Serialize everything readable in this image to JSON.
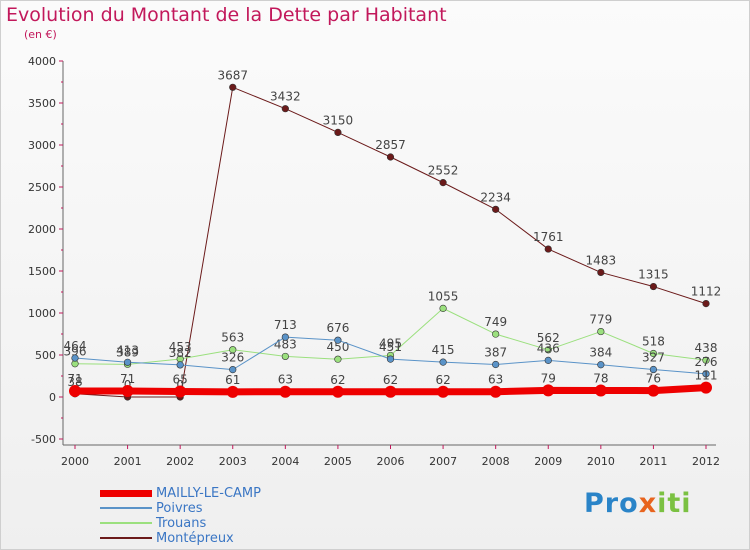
{
  "title": "Evolution du Montant de la Dette par Habitant",
  "subtitle": "(en €)",
  "brand": {
    "text": "Proxiti",
    "letters": [
      "P",
      "r",
      "o",
      "x",
      "i",
      "t",
      "i"
    ],
    "colors": [
      "#2a84c8",
      "#2a84c8",
      "#2a84c8",
      "#e8641e",
      "#7bc142",
      "#7bc142",
      "#7bc142"
    ]
  },
  "chart_data": {
    "type": "line",
    "x": [
      "2000",
      "2001",
      "2002",
      "2003",
      "2004",
      "2005",
      "2006",
      "2007",
      "2008",
      "2009",
      "2010",
      "2011",
      "2012"
    ],
    "ylim": [
      -500,
      4000
    ],
    "yticks": [
      -500,
      0,
      500,
      1000,
      1500,
      2000,
      2500,
      3000,
      3500,
      4000
    ],
    "grid": false,
    "legend_position": "bottom-left",
    "series": [
      {
        "name": "Montépreux",
        "color": "#6b1a1a",
        "width": 1,
        "values": [
          38,
          0,
          0,
          3687,
          3432,
          3150,
          2857,
          2552,
          2234,
          1761,
          1483,
          1315,
          1112
        ],
        "labels": [
          "38",
          "0",
          "0",
          "3687",
          "3432",
          "3150",
          "2857",
          "2552",
          "2234",
          "1761",
          "1483",
          "1315",
          "1112"
        ]
      },
      {
        "name": "Trouans",
        "color": "#9be07e",
        "width": 1,
        "values": [
          396,
          389,
          453,
          563,
          483,
          450,
          495,
          1055,
          749,
          562,
          779,
          518,
          438
        ],
        "labels": [
          "396",
          "389",
          "453",
          "563",
          "483",
          "450",
          "495",
          "1055",
          "749",
          "562",
          "779",
          "518",
          "438"
        ]
      },
      {
        "name": "Poivres",
        "color": "#5a93c8",
        "width": 1,
        "values": [
          464,
          413,
          382,
          326,
          713,
          676,
          451,
          415,
          387,
          436,
          384,
          327,
          276
        ],
        "labels": [
          "464",
          "413",
          "382",
          "326",
          "713",
          "676",
          "451",
          "415",
          "387",
          "436",
          "384",
          "327",
          "276"
        ]
      },
      {
        "name": "MAILLY-LE-CAMP",
        "color": "#ee0000",
        "width": 7,
        "values": [
          71,
          71,
          65,
          61,
          63,
          62,
          62,
          62,
          63,
          79,
          78,
          76,
          111
        ],
        "labels": [
          "71",
          "71",
          "65",
          "61",
          "63",
          "62",
          "62",
          "62",
          "63",
          "79",
          "78",
          "76",
          "111"
        ]
      }
    ],
    "legend_order": [
      "MAILLY-LE-CAMP",
      "Poivres",
      "Trouans",
      "Montépreux"
    ]
  }
}
